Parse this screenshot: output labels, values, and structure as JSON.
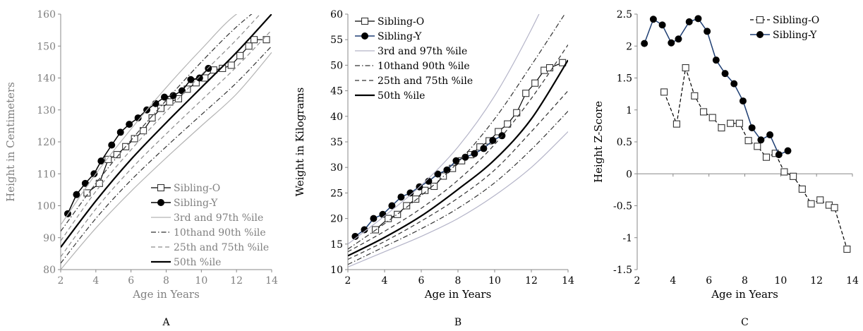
{
  "chart_data": [
    {
      "type": "line",
      "panel_label": "A",
      "title": "",
      "xlabel": "Age in Years",
      "ylabel": "Height in Centimeters",
      "xlim": [
        2,
        14
      ],
      "ylim": [
        80,
        160
      ],
      "xticks": [
        2,
        4,
        6,
        8,
        10,
        12,
        14
      ],
      "yticks": [
        80,
        90,
        100,
        110,
        120,
        130,
        140,
        150,
        160
      ],
      "text_color": "#808080",
      "series": [
        {
          "name": "Sibling-O",
          "style": "open-square",
          "color": "#000000",
          "x": [
            3.5,
            4.2,
            4.7,
            5.2,
            5.7,
            6.2,
            6.7,
            7.2,
            7.7,
            8.2,
            8.7,
            9.2,
            9.7,
            10.2,
            10.7,
            11.2,
            11.7,
            12.2,
            12.7,
            13.0,
            13.7
          ],
          "y": [
            104,
            107,
            114.5,
            116,
            118.5,
            121,
            123.5,
            127.5,
            130.5,
            132.5,
            133.5,
            136.5,
            138.5,
            140,
            142.5,
            143,
            144,
            147,
            150,
            152,
            152
          ]
        },
        {
          "name": "Sibling-Y",
          "style": "filled-circle",
          "color": "#000000",
          "x": [
            2.4,
            2.9,
            3.4,
            3.9,
            4.3,
            4.9,
            5.4,
            5.9,
            6.4,
            6.9,
            7.4,
            7.9,
            8.4,
            8.9,
            9.4,
            9.9,
            10.4
          ],
          "y": [
            97.5,
            103.5,
            107,
            110,
            114,
            119,
            123,
            125.5,
            127.5,
            130,
            132,
            134,
            134.5,
            136,
            139.5,
            140,
            143
          ]
        },
        {
          "name": "3rd and 97th %ile",
          "style": "thin-solid",
          "color": "#b4b4b4",
          "curves": [
            {
              "x": [
                2,
                4,
                6,
                8,
                10,
                12,
                14
              ],
              "y": [
                80,
                93,
                104.5,
                115,
                125,
                135,
                148
              ]
            },
            {
              "x": [
                2,
                4,
                6,
                8,
                10,
                12,
                14
              ],
              "y": [
                94,
                110,
                124,
                137,
                149,
                160,
                165
              ]
            }
          ]
        },
        {
          "name": "10thand 90th %ile",
          "style": "dash-dot",
          "color": "#333333",
          "curves": [
            {
              "x": [
                2,
                4,
                6,
                8,
                10,
                12,
                14
              ],
              "y": [
                82,
                96,
                108,
                118.5,
                128.5,
                138.5,
                150
              ]
            },
            {
              "x": [
                2,
                4,
                6,
                8,
                10,
                12,
                14
              ],
              "y": [
                92,
                107,
                120.5,
                133,
                145,
                156,
                165
              ]
            }
          ]
        },
        {
          "name": "25th and 75th %ile",
          "style": "dashed",
          "color": "#8c8c8c",
          "curves": [
            {
              "x": [
                2,
                4,
                6,
                8,
                10,
                12,
                14
              ],
              "y": [
                84,
                99,
                111.5,
                122.5,
                133,
                143.5,
                155
              ]
            },
            {
              "x": [
                2,
                4,
                6,
                8,
                10,
                12,
                14
              ],
              "y": [
                89,
                104.5,
                117.5,
                129.5,
                141,
                152,
                164
              ]
            }
          ]
        },
        {
          "name": "50th %ile",
          "style": "thick-solid",
          "color": "#000000",
          "curves": [
            {
              "x": [
                2,
                4,
                6,
                8,
                10,
                12,
                14
              ],
              "y": [
                87,
                101.5,
                114.5,
                126,
                137,
                148,
                160
              ]
            }
          ]
        }
      ],
      "legend": "bottom-right"
    },
    {
      "type": "line",
      "panel_label": "B",
      "title": "",
      "xlabel": "Age in Years",
      "ylabel": "Weight in Kilograms",
      "xlim": [
        2,
        14
      ],
      "ylim": [
        10,
        60
      ],
      "xticks": [
        2,
        4,
        6,
        8,
        10,
        12,
        14
      ],
      "yticks": [
        10,
        15,
        20,
        25,
        30,
        35,
        40,
        45,
        50,
        55,
        60
      ],
      "text_color": "#000000",
      "series": [
        {
          "name": "Sibling-O",
          "style": "open-square",
          "color": "#000000",
          "x": [
            3.5,
            4.2,
            4.7,
            5.2,
            5.7,
            6.2,
            6.7,
            7.2,
            7.7,
            8.2,
            8.7,
            9.2,
            9.7,
            10.2,
            10.7,
            11.2,
            11.7,
            12.2,
            12.7,
            13.0,
            13.7
          ],
          "y": [
            17.8,
            20,
            20.8,
            22.5,
            23.8,
            25.5,
            26.3,
            28.3,
            29.8,
            31.3,
            32.5,
            34,
            35.2,
            37,
            38.5,
            40.7,
            44.5,
            46.5,
            49,
            49.5,
            50.5
          ]
        },
        {
          "name": "Sibling-Y",
          "style": "filled-circle",
          "color": "#1f3f73",
          "x": [
            2.4,
            2.9,
            3.4,
            3.9,
            4.4,
            4.9,
            5.4,
            5.9,
            6.4,
            6.9,
            7.4,
            7.9,
            8.4,
            8.9,
            9.4,
            9.9,
            10.4
          ],
          "y": [
            16.5,
            17.8,
            20,
            20.8,
            22.5,
            24.2,
            25,
            26.2,
            27.3,
            28.7,
            29.5,
            31.3,
            32,
            32.7,
            33.7,
            35.3,
            36.2
          ]
        },
        {
          "name": "3rd and 97th %ile",
          "style": "thin-solid",
          "color": "#b4b4c8",
          "curves": [
            {
              "x": [
                2,
                4,
                6,
                8,
                10,
                12,
                14
              ],
              "y": [
                10.5,
                13.5,
                16.5,
                20,
                24.5,
                30,
                37
              ]
            },
            {
              "x": [
                2,
                4,
                6,
                8,
                10,
                12,
                14
              ],
              "y": [
                15,
                20.5,
                26.5,
                34,
                44,
                57,
                72
              ]
            }
          ]
        },
        {
          "name": "10thand 90th %ile",
          "style": "dash-dot",
          "color": "#333333",
          "curves": [
            {
              "x": [
                2,
                4,
                6,
                8,
                10,
                12,
                14
              ],
              "y": [
                11,
                14.5,
                18,
                22,
                27,
                33.5,
                41
              ]
            },
            {
              "x": [
                2,
                4,
                6,
                8,
                10,
                12,
                14
              ],
              "y": [
                14,
                19,
                24.5,
                31,
                39.5,
                50,
                61
              ]
            }
          ]
        },
        {
          "name": "25th and 75th %ile",
          "style": "dashed",
          "color": "#333333",
          "curves": [
            {
              "x": [
                2,
                4,
                6,
                8,
                10,
                12,
                14
              ],
              "y": [
                12,
                15.5,
                19.5,
                24,
                29.5,
                37,
                45
              ]
            },
            {
              "x": [
                2,
                4,
                6,
                8,
                10,
                12,
                14
              ],
              "y": [
                13.5,
                17.5,
                22,
                27.5,
                34.5,
                43.5,
                54
              ]
            }
          ]
        },
        {
          "name": "50th %ile",
          "style": "thick-solid",
          "color": "#000000",
          "curves": [
            {
              "x": [
                2,
                4,
                6,
                8,
                10,
                12,
                14
              ],
              "y": [
                12.7,
                16.3,
                20.5,
                25.7,
                31.5,
                39.5,
                51
              ]
            }
          ]
        }
      ],
      "legend": "top-left"
    },
    {
      "type": "line",
      "panel_label": "C",
      "title": "",
      "xlabel": "Age in Years",
      "ylabel": "Height Z-Score",
      "xlim": [
        2,
        14
      ],
      "ylim": [
        -1.5,
        2.5
      ],
      "xticks": [
        2,
        4,
        6,
        8,
        10,
        12,
        14
      ],
      "yticks": [
        -1.5,
        -1,
        -0.5,
        0,
        0.5,
        1,
        1.5,
        2,
        2.5
      ],
      "text_color": "#000000",
      "series": [
        {
          "name": "Sibling-O",
          "style": "open-square-dashed",
          "color": "#000000",
          "x": [
            3.5,
            4.2,
            4.7,
            5.2,
            5.7,
            6.2,
            6.7,
            7.2,
            7.7,
            8.2,
            8.7,
            9.2,
            9.7,
            10.2,
            10.7,
            11.2,
            11.7,
            12.2,
            12.7,
            13.0,
            13.7
          ],
          "y": [
            1.28,
            0.78,
            1.66,
            1.22,
            0.97,
            0.88,
            0.72,
            0.79,
            0.79,
            0.52,
            0.43,
            0.26,
            0.32,
            0.03,
            -0.04,
            -0.24,
            -0.47,
            -0.41,
            -0.49,
            -0.53,
            -1.18
          ]
        },
        {
          "name": "Sibling-Y",
          "style": "filled-circle",
          "color": "#1f3f73",
          "x": [
            2.4,
            2.9,
            3.4,
            3.9,
            4.3,
            4.9,
            5.4,
            5.9,
            6.4,
            6.9,
            7.4,
            7.9,
            8.4,
            8.9,
            9.4,
            9.9,
            10.4
          ],
          "y": [
            2.04,
            2.42,
            2.33,
            2.05,
            2.11,
            2.38,
            2.43,
            2.23,
            1.78,
            1.57,
            1.41,
            1.14,
            0.72,
            0.53,
            0.61,
            0.3,
            0.36
          ]
        }
      ],
      "legend": "top-right"
    }
  ]
}
